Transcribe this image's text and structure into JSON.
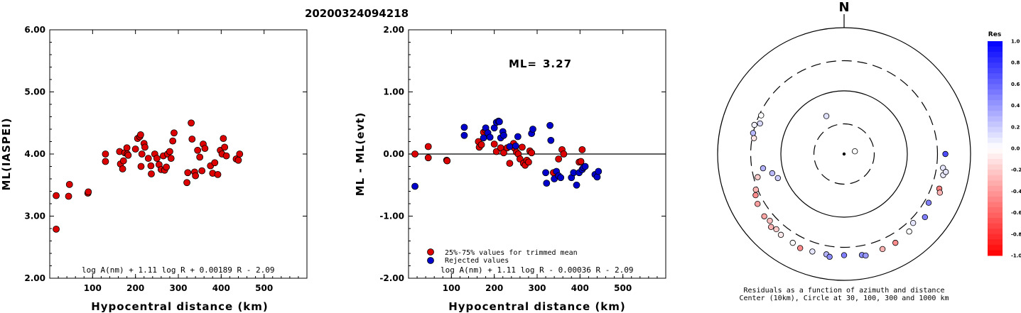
{
  "page_title": "20200324094218",
  "chart_data": [
    {
      "type": "scatter",
      "id": "ml-vs-distance",
      "xlabel": "Hypocentral distance (km)",
      "ylabel": "ML(IASPEI)",
      "xlim": [
        0,
        600
      ],
      "ylim": [
        2.0,
        6.0
      ],
      "xticks": [
        "100",
        "200",
        "300",
        "400",
        "500"
      ],
      "yticks": [
        "2.00",
        "3.00",
        "4.00",
        "5.00",
        "6.00"
      ],
      "formula": "log A(nm) + 1.11 log R + 0.00189 R - 2.09",
      "marker_color": "#dd0000",
      "points": [
        [
          15,
          2.79
        ],
        [
          15,
          3.33
        ],
        [
          44,
          3.32
        ],
        [
          46,
          3.51
        ],
        [
          89,
          3.37
        ],
        [
          90,
          3.39
        ],
        [
          130,
          4.0
        ],
        [
          130,
          3.88
        ],
        [
          163,
          4.04
        ],
        [
          165,
          3.84
        ],
        [
          170,
          3.76
        ],
        [
          172,
          3.89
        ],
        [
          175,
          4.02
        ],
        [
          180,
          4.1
        ],
        [
          181,
          4.0
        ],
        [
          183,
          3.98
        ],
        [
          200,
          4.08
        ],
        [
          205,
          4.25
        ],
        [
          210,
          4.28
        ],
        [
          212,
          4.31
        ],
        [
          215,
          4.0
        ],
        [
          213,
          3.8
        ],
        [
          220,
          4.17
        ],
        [
          222,
          4.11
        ],
        [
          230,
          3.93
        ],
        [
          236,
          3.81
        ],
        [
          237,
          3.68
        ],
        [
          245,
          4.0
        ],
        [
          250,
          3.93
        ],
        [
          255,
          3.83
        ],
        [
          260,
          3.75
        ],
        [
          265,
          3.97
        ],
        [
          268,
          3.74
        ],
        [
          272,
          3.79
        ],
        [
          275,
          4.0
        ],
        [
          280,
          4.04
        ],
        [
          283,
          3.93
        ],
        [
          287,
          4.21
        ],
        [
          290,
          4.34
        ],
        [
          320,
          3.54
        ],
        [
          322,
          3.7
        ],
        [
          330,
          4.5
        ],
        [
          332,
          4.24
        ],
        [
          338,
          3.71
        ],
        [
          340,
          3.65
        ],
        [
          345,
          4.06
        ],
        [
          350,
          3.95
        ],
        [
          355,
          3.73
        ],
        [
          358,
          4.16
        ],
        [
          362,
          4.09
        ],
        [
          375,
          3.81
        ],
        [
          380,
          3.69
        ],
        [
          385,
          3.86
        ],
        [
          392,
          3.67
        ],
        [
          398,
          4.06
        ],
        [
          402,
          4.0
        ],
        [
          405,
          4.25
        ],
        [
          408,
          4.11
        ],
        [
          412,
          3.97
        ],
        [
          435,
          3.92
        ],
        [
          440,
          3.9
        ],
        [
          443,
          4.0
        ]
      ]
    },
    {
      "type": "scatter",
      "id": "residual-vs-distance",
      "xlabel": "Hypocentral distance (km)",
      "ylabel": "ML - ML(evt)",
      "xlim": [
        0,
        600
      ],
      "ylim": [
        -2.0,
        2.0
      ],
      "xticks": [
        "100",
        "200",
        "300",
        "400",
        "500"
      ],
      "yticks": [
        "-2.00",
        "-1.00",
        "0.00",
        "1.00",
        "2.00"
      ],
      "ml_label": "ML=",
      "ml_value": "3.27",
      "formula": "log A(nm) + 1.11 log R - 0.00036 R - 2.09",
      "series": [
        {
          "name": "25%-75% values for trimmed mean",
          "color": "#dd0000",
          "points": [
            [
              15,
              0.0
            ],
            [
              46,
              0.12
            ],
            [
              46,
              -0.06
            ],
            [
              89,
              -0.1
            ],
            [
              90,
              -0.11
            ],
            [
              163,
              0.2
            ],
            [
              165,
              0.11
            ],
            [
              170,
              0.15
            ],
            [
              175,
              0.35
            ],
            [
              180,
              0.38
            ],
            [
              200,
              0.16
            ],
            [
              205,
              0.04
            ],
            [
              215,
              0.1
            ],
            [
              222,
              0.02
            ],
            [
              230,
              0.1
            ],
            [
              236,
              -0.15
            ],
            [
              245,
              0.17
            ],
            [
              248,
              0.09
            ],
            [
              252,
              0.03
            ],
            [
              256,
              0.0
            ],
            [
              260,
              -0.08
            ],
            [
              265,
              0.11
            ],
            [
              268,
              -0.15
            ],
            [
              272,
              -0.18
            ],
            [
              276,
              -0.1
            ],
            [
              280,
              -0.13
            ],
            [
              283,
              0.05
            ],
            [
              287,
              0.02
            ],
            [
              338,
              -0.3
            ],
            [
              350,
              -0.08
            ],
            [
              358,
              0.07
            ],
            [
              362,
              0.0
            ],
            [
              398,
              -0.13
            ],
            [
              402,
              -0.12
            ],
            [
              405,
              0.07
            ]
          ]
        },
        {
          "name": "Rejected values",
          "color": "#0000cc",
          "points": [
            [
              15,
              -0.52
            ],
            [
              130,
              0.43
            ],
            [
              130,
              0.3
            ],
            [
              175,
              0.26
            ],
            [
              180,
              0.42
            ],
            [
              185,
              0.34
            ],
            [
              190,
              0.27
            ],
            [
              200,
              0.42
            ],
            [
              205,
              0.51
            ],
            [
              210,
              0.53
            ],
            [
              212,
              0.52
            ],
            [
              215,
              0.26
            ],
            [
              220,
              0.36
            ],
            [
              222,
              0.3
            ],
            [
              236,
              0.12
            ],
            [
              250,
              0.13
            ],
            [
              255,
              0.28
            ],
            [
              287,
              0.33
            ],
            [
              290,
              0.4
            ],
            [
              320,
              -0.3
            ],
            [
              322,
              -0.47
            ],
            [
              330,
              0.46
            ],
            [
              332,
              0.22
            ],
            [
              340,
              -0.4
            ],
            [
              345,
              -0.28
            ],
            [
              350,
              -0.35
            ],
            [
              355,
              -0.38
            ],
            [
              380,
              -0.38
            ],
            [
              385,
              -0.3
            ],
            [
              392,
              -0.5
            ],
            [
              398,
              -0.3
            ],
            [
              405,
              -0.25
            ],
            [
              408,
              -0.22
            ],
            [
              412,
              -0.2
            ],
            [
              435,
              -0.33
            ],
            [
              440,
              -0.37
            ],
            [
              443,
              -0.28
            ]
          ]
        }
      ]
    },
    {
      "type": "polar-scatter",
      "id": "azimuth-residuals",
      "north_label": "N",
      "rings_km": [
        30,
        100,
        300,
        1000
      ],
      "caption_line1": "Residuals as a function of azimuth and distance",
      "caption_line2": "Center (10km), Circle at 30, 100, 300 and 1000 km",
      "colorbar_title": "Res",
      "colorbar_ticks": [
        "1.0",
        "0.8",
        "0.6",
        "0.4",
        "0.2",
        "0.0",
        "-0.2",
        "-0.4",
        "-0.6",
        "-0.8",
        "-1.0"
      ],
      "points_az_dist_res": [
        [
          76,
          15,
          0.0
        ],
        [
          335,
          46,
          0.12
        ],
        [
          250,
          130,
          0.2
        ],
        [
          255,
          150,
          0.28
        ],
        [
          290,
          260,
          0.15
        ],
        [
          280,
          280,
          -0.1
        ],
        [
          295,
          280,
          0.0
        ],
        [
          283,
          300,
          0.28
        ],
        [
          288,
          310,
          0.05
        ],
        [
          255,
          260,
          -0.2
        ],
        [
          260,
          200,
          0.3
        ],
        [
          248,
          320,
          -0.3
        ],
        [
          245,
          350,
          -0.45
        ],
        [
          240,
          380,
          -0.38
        ],
        [
          232,
          400,
          -0.35
        ],
        [
          228,
          380,
          -0.25
        ],
        [
          222,
          400,
          -0.2
        ],
        [
          218,
          420,
          -0.08
        ],
        [
          225,
          430,
          -0.3
        ],
        [
          210,
          420,
          0.0
        ],
        [
          205,
          440,
          -0.45
        ],
        [
          198,
          420,
          0.1
        ],
        [
          190,
          410,
          0.3
        ],
        [
          188,
          440,
          0.45
        ],
        [
          180,
          400,
          0.5
        ],
        [
          170,
          420,
          0.46
        ],
        [
          168,
          440,
          0.4
        ],
        [
          158,
          420,
          -0.3
        ],
        [
          150,
          420,
          -0.45
        ],
        [
          140,
          400,
          0.0
        ],
        [
          135,
          350,
          0.1
        ],
        [
          128,
          420,
          0.5
        ],
        [
          110,
          400,
          -0.5
        ],
        [
          112,
          430,
          -0.3
        ],
        [
          102,
          400,
          0.08
        ],
        [
          98,
          380,
          0.1
        ],
        [
          100,
          430,
          0.1
        ],
        [
          90,
          400,
          0.7
        ],
        [
          120,
          350,
          0.5
        ]
      ]
    }
  ],
  "legend": [
    {
      "label": "25%-75% values for trimmed mean",
      "color": "#dd0000"
    },
    {
      "label": "Rejected values",
      "color": "#0000cc"
    }
  ]
}
